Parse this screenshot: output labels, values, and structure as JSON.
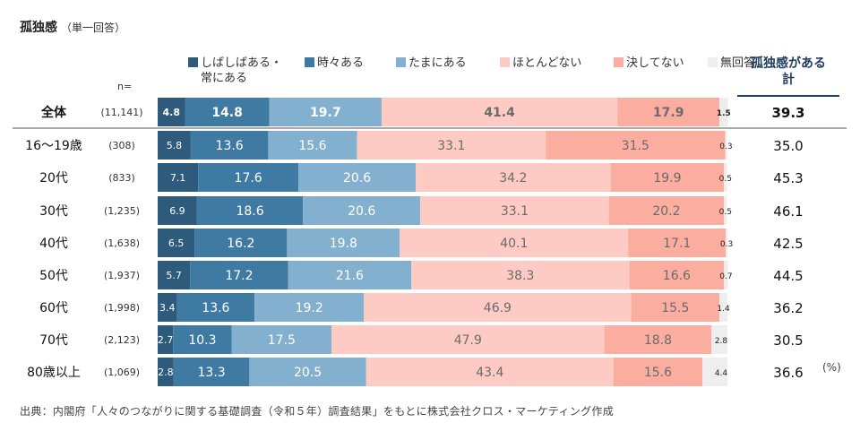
{
  "title": "孤独感",
  "subtitle": "（単一回答）",
  "n_label": "n=",
  "total_header_line1": "孤独感がある",
  "total_header_line2": "計",
  "unit": "(%)",
  "source": "出典：内閣府「人々のつながりに関する基礎調査（令和５年）調査結果」をもとに株式会社クロス・マーケティング作成",
  "chart_data": {
    "type": "bar",
    "orientation": "horizontal-stacked-100",
    "title": "孤独感（単一回答）",
    "categories": [
      "全体",
      "16〜19歳",
      "20代",
      "30代",
      "40代",
      "50代",
      "60代",
      "70代",
      "80歳以上"
    ],
    "n": [
      "(11,141)",
      "(308)",
      "(833)",
      "(1,235)",
      "(1,638)",
      "(1,937)",
      "(1,998)",
      "(2,123)",
      "(1,069)"
    ],
    "series": [
      {
        "name": "しばしばある・常にある",
        "color": "#2e5a7c",
        "values": [
          4.8,
          5.8,
          7.1,
          6.9,
          6.5,
          5.7,
          3.4,
          2.7,
          2.8
        ]
      },
      {
        "name": "時々ある",
        "color": "#3f7aa3",
        "values": [
          14.8,
          13.6,
          17.6,
          18.6,
          16.2,
          17.2,
          13.6,
          10.3,
          13.3
        ]
      },
      {
        "name": "たまにある",
        "color": "#84b0d0",
        "values": [
          19.7,
          15.6,
          20.6,
          20.6,
          19.8,
          21.6,
          19.2,
          17.5,
          20.5
        ]
      },
      {
        "name": "ほとんどない",
        "color": "#fdcbc3",
        "values": [
          41.4,
          33.1,
          34.2,
          33.1,
          40.1,
          38.3,
          46.9,
          47.9,
          43.4
        ]
      },
      {
        "name": "決してない",
        "color": "#fbada0",
        "values": [
          17.9,
          31.5,
          19.9,
          20.2,
          17.1,
          16.6,
          15.5,
          18.8,
          15.6
        ]
      },
      {
        "name": "無回答",
        "color": "#eeeeee",
        "values": [
          1.5,
          0.3,
          0.5,
          0.5,
          0.3,
          0.7,
          1.4,
          2.8,
          4.4
        ]
      }
    ],
    "totals_label": "孤独感がある計",
    "totals": [
      39.3,
      35.0,
      45.3,
      46.1,
      42.5,
      44.5,
      36.2,
      30.5,
      36.6
    ],
    "legend_position": "top",
    "xlim": [
      0,
      100
    ],
    "unit": "%"
  }
}
